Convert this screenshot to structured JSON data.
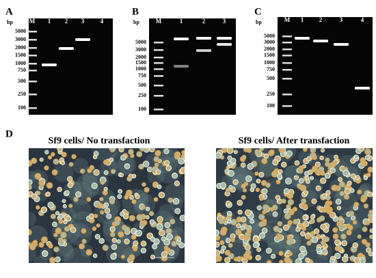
{
  "panels": [
    {
      "label": "A",
      "unit": "bp",
      "lanes": [
        "M",
        "1",
        "2",
        "3",
        "4"
      ],
      "ladder": [
        5000,
        3000,
        2000,
        1500,
        1000,
        750,
        500,
        250,
        100
      ]
    },
    {
      "label": "B",
      "unit": "bp",
      "lanes": [
        "M",
        "1",
        "2",
        "3"
      ],
      "ladder": [
        5000,
        3000,
        2000,
        1500,
        1000,
        750,
        500,
        250,
        100
      ]
    },
    {
      "label": "C",
      "unit": "bp",
      "lanes": [
        "M",
        "1",
        "2",
        "3",
        "4"
      ],
      "ladder": [
        5000,
        3000,
        2000,
        1500,
        1000,
        750,
        500,
        250,
        100
      ]
    }
  ],
  "microscopy": {
    "label": "D",
    "images": [
      {
        "title": "Sf9 cells/ No transfaction"
      },
      {
        "title": "Sf9 cells/ After transfaction"
      }
    ]
  }
}
